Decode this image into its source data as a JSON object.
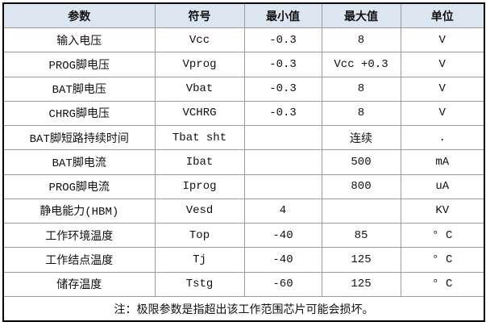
{
  "headers": [
    "参数",
    "符号",
    "最小值",
    "最大值",
    "单位"
  ],
  "rows": [
    [
      "输入电压",
      "Vcc",
      "-0.3",
      "8",
      "V"
    ],
    [
      "PROG脚电压",
      "Vprog",
      "-0.3",
      "Vcc +0.3",
      "V"
    ],
    [
      "BAT脚电压",
      "Vbat",
      "-0.3",
      "8",
      "V"
    ],
    [
      "CHRG脚电压",
      "VCHRG",
      "-0.3",
      "8",
      "V"
    ],
    [
      "BAT脚短路持续时间",
      "Tbat sht",
      "",
      "连续",
      "."
    ],
    [
      "BAT脚电流",
      "Ibat",
      "",
      "500",
      "mA"
    ],
    [
      "PROG脚电流",
      "Iprog",
      "",
      "800",
      "uA"
    ],
    [
      "静电能力(HBM)",
      "Vesd",
      "4",
      "",
      "KV"
    ],
    [
      "工作环境温度",
      "Top",
      "-40",
      "85",
      "° C"
    ],
    [
      "工作结点温度",
      "Tj",
      "-40",
      "125",
      "° C"
    ],
    [
      "储存温度",
      "Tstg",
      "-60",
      "125",
      "° C"
    ]
  ],
  "note": "注：极限参数是指超出该工作范围芯片可能会损坏。",
  "colors": {
    "header_bg": "#dce6f1",
    "border": "#000000"
  }
}
